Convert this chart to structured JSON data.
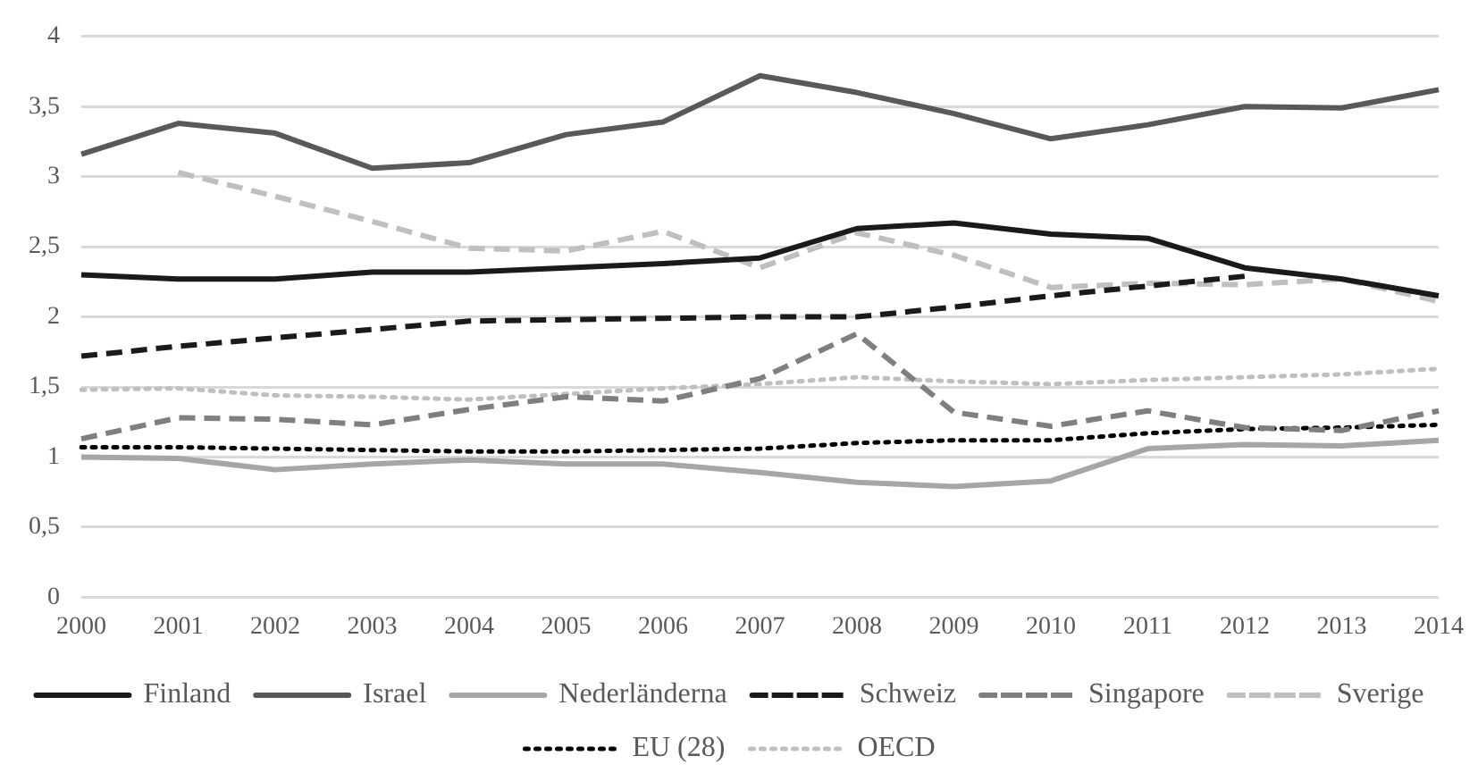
{
  "chart_data": {
    "type": "line",
    "categories": [
      "2000",
      "2001",
      "2002",
      "2003",
      "2004",
      "2005",
      "2006",
      "2007",
      "2008",
      "2009",
      "2010",
      "2011",
      "2012",
      "2013",
      "2014"
    ],
    "ylim": [
      0,
      4
    ],
    "yticks": [
      0,
      {
        "value": 0.5,
        "label": "0,5"
      },
      1,
      {
        "value": 1.5,
        "label": "1,5"
      },
      2,
      {
        "value": 2.5,
        "label": "2,5"
      },
      3,
      {
        "value": 3.5,
        "label": "3,5"
      },
      4
    ],
    "grid": "y",
    "legend": "bottom",
    "marker": "none",
    "series": [
      {
        "name": "Finland",
        "color": "#1a1a1a",
        "line_style": "solid",
        "values": [
          2.3,
          2.27,
          2.27,
          2.32,
          2.32,
          2.35,
          2.38,
          2.42,
          2.63,
          2.67,
          2.59,
          2.56,
          2.35,
          2.27,
          2.15
        ]
      },
      {
        "name": "Israel",
        "color": "#595959",
        "line_style": "solid",
        "values": [
          3.16,
          3.38,
          3.31,
          3.06,
          3.1,
          3.3,
          3.39,
          3.72,
          3.6,
          3.45,
          3.27,
          3.37,
          3.5,
          3.49,
          3.62
        ]
      },
      {
        "name": "Nederländerna",
        "color": "#a6a6a6",
        "line_style": "solid",
        "values": [
          1.0,
          0.99,
          0.91,
          0.95,
          0.98,
          0.95,
          0.95,
          0.89,
          0.82,
          0.79,
          0.83,
          1.06,
          1.09,
          1.08,
          1.12
        ]
      },
      {
        "name": "Schweiz",
        "color": "#1a1a1a",
        "line_style": "dashed",
        "values": [
          1.72,
          1.79,
          1.85,
          1.91,
          1.97,
          1.98,
          1.99,
          2.0,
          2.0,
          2.07,
          2.15,
          2.22,
          2.29,
          null,
          null
        ]
      },
      {
        "name": "Singapore",
        "color": "#7f7f7f",
        "line_style": "dashed",
        "values": [
          1.13,
          1.28,
          1.27,
          1.23,
          1.34,
          1.43,
          1.4,
          1.56,
          1.88,
          1.32,
          1.22,
          1.33,
          1.21,
          1.19,
          1.33
        ]
      },
      {
        "name": "Sverige",
        "color": "#bfbfbf",
        "line_style": "dashed",
        "values": [
          null,
          3.03,
          2.86,
          2.68,
          2.49,
          2.47,
          2.61,
          2.35,
          2.6,
          2.44,
          2.21,
          2.24,
          2.23,
          2.27,
          2.11
        ]
      },
      {
        "name": "EU (28)",
        "color": "#000000",
        "line_style": "dotted",
        "values": [
          1.07,
          1.07,
          1.06,
          1.05,
          1.04,
          1.04,
          1.05,
          1.06,
          1.1,
          1.12,
          1.12,
          1.17,
          1.2,
          1.21,
          1.23
        ]
      },
      {
        "name": "OECD",
        "color": "#bfbfbf",
        "line_style": "dotted",
        "values": [
          1.48,
          1.49,
          1.44,
          1.43,
          1.41,
          1.45,
          1.49,
          1.52,
          1.57,
          1.54,
          1.52,
          1.55,
          1.57,
          1.59,
          1.63
        ]
      }
    ]
  }
}
